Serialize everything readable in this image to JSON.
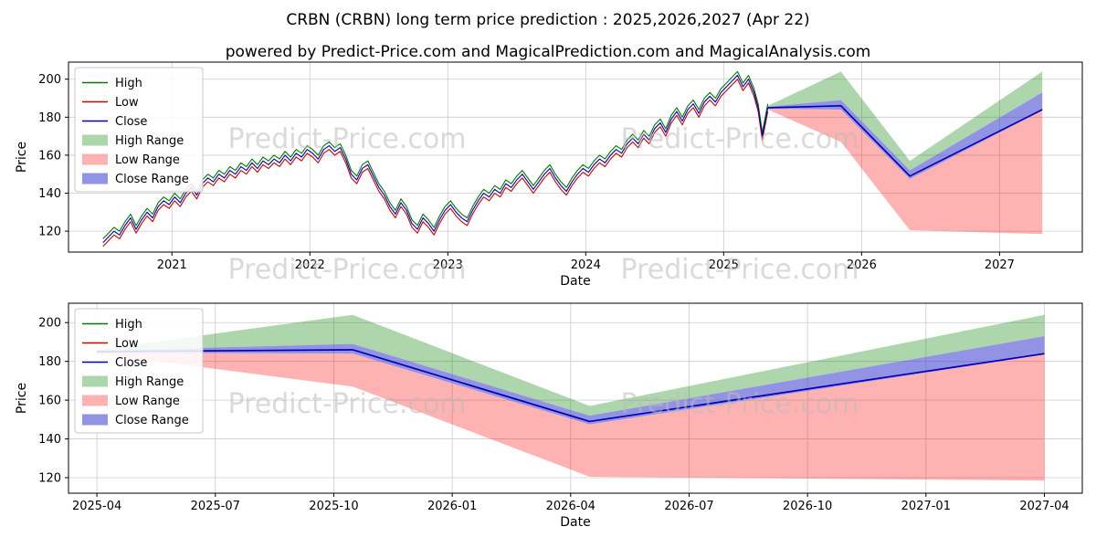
{
  "title": "CRBN (CRBN) long term price prediction : 2025,2026,2027 (Apr 22)",
  "subtitle": "powered by Predict-Price.com and MagicalPrediction.com and MagicalAnalysis.com",
  "watermark": {
    "text": "Predict-Price.com",
    "color": "#bcbcbc"
  },
  "colors": {
    "high_line": "#007d00",
    "low_line": "#d40000",
    "close_line": "#0000b4",
    "high_range_fill": "#008000",
    "low_range_fill": "#ff0000",
    "close_range_fill": "#3a3ad0",
    "grid": "#cccccc"
  },
  "legend": {
    "entries": [
      {
        "label": "High",
        "type": "line",
        "color": "#007d00"
      },
      {
        "label": "Low",
        "type": "line",
        "color": "#d40000"
      },
      {
        "label": "Close",
        "type": "line",
        "color": "#0000b4"
      },
      {
        "label": "High Range",
        "type": "patch",
        "color": "#008000",
        "opacity": 0.32
      },
      {
        "label": "Low Range",
        "type": "patch",
        "color": "#ff0000",
        "opacity": 0.3
      },
      {
        "label": "Close Range",
        "type": "patch",
        "color": "#3a3ad0",
        "opacity": 0.55
      }
    ]
  },
  "chart_data": [
    {
      "type": "line",
      "name": "history-and-forecast",
      "xlabel": "Date",
      "ylabel": "Price",
      "xlim": [
        2020.25,
        2027.6
      ],
      "ylim": [
        109,
        209
      ],
      "grid": true,
      "legend_position": "upper left",
      "xticks": [
        {
          "v": 2021,
          "label": "2021"
        },
        {
          "v": 2022,
          "label": "2022"
        },
        {
          "v": 2023,
          "label": "2023"
        },
        {
          "v": 2024,
          "label": "2024"
        },
        {
          "v": 2025,
          "label": "2025"
        },
        {
          "v": 2026,
          "label": "2026"
        },
        {
          "v": 2027,
          "label": "2027"
        }
      ],
      "yticks": [
        120,
        140,
        160,
        180,
        200
      ],
      "x": [
        2020.5,
        2020.54,
        2020.58,
        2020.62,
        2020.66,
        2020.7,
        2020.74,
        2020.78,
        2020.82,
        2020.86,
        2020.9,
        2020.94,
        2020.98,
        2021.02,
        2021.06,
        2021.1,
        2021.14,
        2021.18,
        2021.22,
        2021.26,
        2021.3,
        2021.34,
        2021.38,
        2021.42,
        2021.46,
        2021.5,
        2021.54,
        2021.58,
        2021.62,
        2021.66,
        2021.7,
        2021.74,
        2021.78,
        2021.82,
        2021.86,
        2021.9,
        2021.94,
        2021.98,
        2022.02,
        2022.06,
        2022.1,
        2022.14,
        2022.18,
        2022.22,
        2022.26,
        2022.3,
        2022.34,
        2022.38,
        2022.42,
        2022.46,
        2022.5,
        2022.54,
        2022.58,
        2022.62,
        2022.66,
        2022.7,
        2022.74,
        2022.78,
        2022.82,
        2022.86,
        2022.9,
        2022.94,
        2022.98,
        2023.02,
        2023.06,
        2023.1,
        2023.14,
        2023.18,
        2023.22,
        2023.26,
        2023.3,
        2023.34,
        2023.38,
        2023.42,
        2023.46,
        2023.5,
        2023.54,
        2023.58,
        2023.62,
        2023.66,
        2023.7,
        2023.74,
        2023.78,
        2023.82,
        2023.86,
        2023.9,
        2023.94,
        2023.98,
        2024.02,
        2024.06,
        2024.1,
        2024.14,
        2024.18,
        2024.22,
        2024.26,
        2024.3,
        2024.34,
        2024.38,
        2024.42,
        2024.46,
        2024.5,
        2024.54,
        2024.58,
        2024.62,
        2024.66,
        2024.7,
        2024.74,
        2024.78,
        2024.82,
        2024.86,
        2024.9,
        2024.94,
        2024.98,
        2025.02,
        2025.06,
        2025.1,
        2025.14,
        2025.18,
        2025.22,
        2025.25,
        2025.28,
        2025.32
      ],
      "series": [
        {
          "name": "High",
          "color": "#007d00",
          "width": 1.1,
          "values": [
            116,
            119,
            122,
            120,
            125,
            129,
            123,
            128,
            132,
            129,
            135,
            138,
            136,
            140,
            137,
            142,
            145,
            141,
            147,
            150,
            148,
            152,
            150,
            154,
            152,
            156,
            154,
            158,
            155,
            159,
            157,
            160,
            158,
            162,
            159,
            163,
            161,
            165,
            163,
            160,
            165,
            167,
            164,
            166,
            160,
            152,
            149,
            155,
            157,
            151,
            145,
            141,
            135,
            131,
            137,
            133,
            126,
            123,
            129,
            126,
            122,
            128,
            133,
            136,
            132,
            129,
            127,
            133,
            138,
            142,
            140,
            144,
            142,
            147,
            145,
            149,
            152,
            148,
            144,
            148,
            152,
            155,
            150,
            146,
            143,
            148,
            152,
            155,
            153,
            157,
            160,
            158,
            162,
            165,
            163,
            168,
            171,
            168,
            173,
            170,
            176,
            179,
            174,
            181,
            185,
            180,
            186,
            189,
            184,
            190,
            193,
            190,
            195,
            198,
            201,
            204,
            198,
            202,
            195,
            187,
            172,
            187
          ]
        },
        {
          "name": "Low",
          "color": "#d40000",
          "width": 1.1,
          "values": [
            112,
            115,
            118,
            116,
            121,
            125,
            119,
            124,
            128,
            125,
            131,
            134,
            132,
            136,
            133,
            138,
            141,
            137,
            143,
            146,
            144,
            148,
            146,
            150,
            148,
            152,
            150,
            154,
            151,
            155,
            153,
            156,
            154,
            158,
            155,
            159,
            157,
            161,
            159,
            156,
            161,
            163,
            160,
            162,
            156,
            148,
            145,
            151,
            153,
            147,
            141,
            137,
            131,
            127,
            133,
            129,
            122,
            119,
            125,
            122,
            118,
            124,
            129,
            132,
            128,
            125,
            123,
            129,
            134,
            138,
            136,
            140,
            138,
            143,
            141,
            145,
            148,
            144,
            140,
            144,
            148,
            151,
            146,
            142,
            139,
            144,
            148,
            151,
            149,
            153,
            156,
            154,
            158,
            161,
            159,
            164,
            167,
            164,
            169,
            166,
            172,
            175,
            170,
            177,
            181,
            176,
            182,
            185,
            180,
            186,
            189,
            186,
            191,
            194,
            197,
            200,
            194,
            198,
            191,
            183,
            168,
            183
          ]
        },
        {
          "name": "Close",
          "color": "#0000b4",
          "width": 1.1,
          "values": [
            114,
            117,
            120,
            118,
            123,
            127,
            121,
            126,
            130,
            127,
            133,
            136,
            134,
            138,
            135,
            140,
            143,
            139,
            145,
            148,
            146,
            150,
            148,
            152,
            150,
            154,
            152,
            156,
            153,
            157,
            155,
            158,
            156,
            160,
            157,
            161,
            159,
            163,
            161,
            158,
            163,
            165,
            162,
            164,
            158,
            150,
            147,
            153,
            155,
            149,
            143,
            139,
            133,
            129,
            135,
            131,
            124,
            121,
            127,
            124,
            120,
            126,
            131,
            134,
            130,
            127,
            125,
            131,
            136,
            140,
            138,
            142,
            140,
            145,
            143,
            147,
            150,
            146,
            142,
            146,
            150,
            153,
            148,
            144,
            141,
            146,
            150,
            153,
            151,
            155,
            158,
            156,
            160,
            163,
            161,
            166,
            169,
            166,
            171,
            168,
            174,
            177,
            172,
            179,
            183,
            178,
            184,
            187,
            182,
            188,
            191,
            188,
            193,
            196,
            199,
            202,
            196,
            200,
            193,
            185,
            170,
            185
          ]
        },
        {
          "name": "Close Forecast",
          "color": "#0000b4",
          "width": 1.6,
          "x": [
            2025.32,
            2025.85,
            2026.35,
            2027.31
          ],
          "values": [
            185,
            186,
            149,
            184
          ]
        }
      ],
      "bands": [
        {
          "name": "High Range",
          "color": "#008000",
          "opacity": 0.32,
          "x": [
            2025.32,
            2025.85,
            2026.35,
            2027.31
          ],
          "upper": [
            186,
            204,
            157,
            204
          ],
          "lower": [
            185.5,
            189,
            152,
            193
          ]
        },
        {
          "name": "Low Range",
          "color": "#ff0000",
          "opacity": 0.3,
          "x": [
            2025.32,
            2025.85,
            2026.35,
            2027.31
          ],
          "upper": [
            184.5,
            184,
            147.5,
            183.5
          ],
          "lower": [
            184,
            167,
            120.5,
            118.5
          ]
        },
        {
          "name": "Close Range",
          "color": "#3a3ad0",
          "opacity": 0.55,
          "x": [
            2025.32,
            2025.85,
            2026.35,
            2027.31
          ],
          "upper": [
            185.5,
            189,
            152,
            193
          ],
          "lower": [
            184.5,
            184,
            147.5,
            183.5
          ]
        }
      ]
    },
    {
      "type": "line",
      "name": "forecast-detail",
      "xlabel": "Date",
      "ylabel": "Price",
      "xlim": [
        2025.25,
        2027.39
      ],
      "ylim": [
        112,
        210
      ],
      "grid": true,
      "legend_position": "upper left",
      "xticks": [
        {
          "v": 2025.31,
          "label": "2025-04"
        },
        {
          "v": 2025.56,
          "label": "2025-07"
        },
        {
          "v": 2025.81,
          "label": "2025-10"
        },
        {
          "v": 2026.06,
          "label": "2026-01"
        },
        {
          "v": 2026.31,
          "label": "2026-04"
        },
        {
          "v": 2026.56,
          "label": "2026-07"
        },
        {
          "v": 2026.81,
          "label": "2026-10"
        },
        {
          "v": 2027.06,
          "label": "2027-01"
        },
        {
          "v": 2027.31,
          "label": "2027-04"
        }
      ],
      "yticks": [
        120,
        140,
        160,
        180,
        200
      ],
      "series": [
        {
          "name": "Close Forecast",
          "color": "#0000b4",
          "width": 1.7,
          "x": [
            2025.31,
            2025.85,
            2026.35,
            2027.31
          ],
          "values": [
            185,
            186,
            149,
            184
          ]
        }
      ],
      "bands": [
        {
          "name": "High Range",
          "color": "#008000",
          "opacity": 0.32,
          "x": [
            2025.31,
            2025.85,
            2026.35,
            2027.31
          ],
          "upper": [
            186,
            204,
            157,
            204
          ],
          "lower": [
            185.5,
            189,
            152,
            193
          ]
        },
        {
          "name": "Low Range",
          "color": "#ff0000",
          "opacity": 0.3,
          "x": [
            2025.31,
            2025.85,
            2026.35,
            2027.31
          ],
          "upper": [
            184.5,
            184,
            147.5,
            183.5
          ],
          "lower": [
            184,
            167,
            120.5,
            118.5
          ]
        },
        {
          "name": "Close Range",
          "color": "#3a3ad0",
          "opacity": 0.55,
          "x": [
            2025.31,
            2025.85,
            2026.35,
            2027.31
          ],
          "upper": [
            185.5,
            189,
            152,
            193
          ],
          "lower": [
            184.5,
            184,
            147.5,
            183.5
          ]
        }
      ]
    }
  ]
}
